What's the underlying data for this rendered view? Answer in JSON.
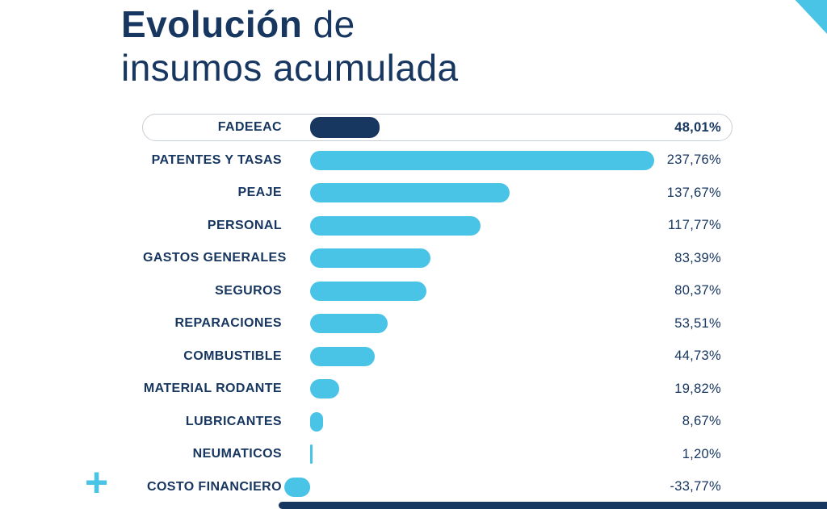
{
  "title": {
    "word_bold": "Evolución",
    "word_rest": " de",
    "line2": "insumos acumulada"
  },
  "decorations": {
    "plus": "+"
  },
  "colors": {
    "navy": "#173660",
    "light_blue": "#49c3e6",
    "pill_border": "#c8ced6"
  },
  "chart_data": {
    "type": "bar",
    "orientation": "horizontal",
    "title": "Evolución de insumos acumulada",
    "unit": "%",
    "xlim": [
      -33.77,
      237.76
    ],
    "grid": false,
    "legend": false,
    "highlight_index": 0,
    "highlight_category": "FADEEAC",
    "categories": [
      "FADEEAC",
      "PATENTES Y TASAS",
      "PEAJE",
      "PERSONAL",
      "GASTOS GENERALES",
      "SEGUROS",
      "REPARACIONES",
      "COMBUSTIBLE",
      "MATERIAL RODANTE",
      "LUBRICANTES",
      "NEUMATICOS",
      "COSTO FINANCIERO"
    ],
    "values": [
      48.01,
      237.76,
      137.67,
      117.77,
      83.39,
      80.37,
      53.51,
      44.73,
      19.82,
      8.67,
      1.2,
      -33.77
    ],
    "value_labels": [
      "48,01%",
      "237,76%",
      "137,67%",
      "117,77%",
      "83,39%",
      "80,37%",
      "53,51%",
      "44,73%",
      "19,82%",
      "8,67%",
      "1,20%",
      "-33,77%"
    ]
  }
}
